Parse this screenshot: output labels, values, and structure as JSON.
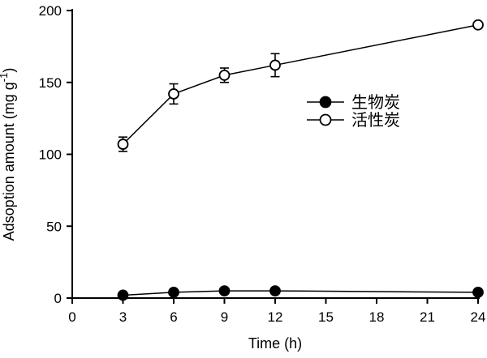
{
  "figure": {
    "background": "#ffffff",
    "axis_color": "#000000",
    "chart_data": {
      "type": "line",
      "title": "",
      "xlabel": "Time (h)",
      "ylabel": "Adsoption amount (mg g⁻¹)",
      "ylabel_parts": {
        "pre": "Adsoption amount (mg g",
        "sup": "-1",
        "post": ")"
      },
      "xlim": [
        0,
        24
      ],
      "ylim": [
        0,
        200
      ],
      "xticks": [
        0,
        3,
        6,
        9,
        12,
        15,
        18,
        21,
        24
      ],
      "yticks": [
        0,
        50,
        100,
        150,
        200
      ],
      "grid": false,
      "legend_position": "inside-center-right",
      "x": [
        3,
        6,
        9,
        12,
        24
      ],
      "series": [
        {
          "name": "生物炭",
          "marker": "filled-circle",
          "color": "#000000",
          "values": [
            2,
            4,
            5,
            5,
            4
          ]
        },
        {
          "name": "活性炭",
          "marker": "open-circle",
          "color": "#000000",
          "values": [
            107,
            142,
            155,
            162,
            190
          ],
          "errors": [
            5,
            7,
            5,
            8,
            0
          ]
        }
      ]
    }
  }
}
